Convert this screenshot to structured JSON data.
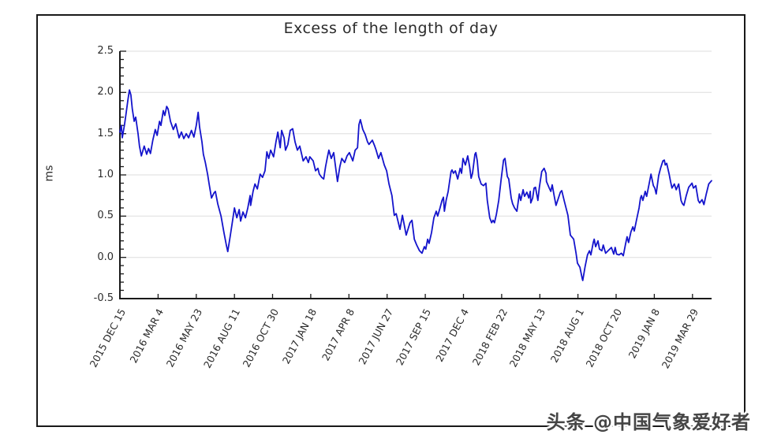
{
  "watermark": {
    "text": "头条 @中国气象爱好者",
    "color": "#454545"
  },
  "colors": {
    "line": "#1414cc",
    "grid": "#dedede",
    "axis": "#191919",
    "text": "#2b2b2b",
    "frame": "#191919",
    "background": "#ffffff"
  },
  "chart_data": {
    "type": "line",
    "title": "Excess of the length of day",
    "xlabel": "",
    "ylabel": "ms",
    "legend": "none",
    "grid": "horizontal major gridlines only",
    "ylim": [
      -0.5,
      2.5
    ],
    "y_ticks": [
      "-0.5",
      "0.0",
      "0.5",
      "1.0",
      "1.5",
      "2.0",
      "2.5"
    ],
    "y_tick_values": [
      -0.5,
      0.0,
      0.5,
      1.0,
      1.5,
      2.0,
      2.5
    ],
    "y_minor_tick_step": 0.1,
    "x_unit": "days since first tick (2015 DEC 15), ticks every 80 days",
    "xlim": [
      0,
      1240
    ],
    "x_ticks": [
      {
        "day": 0,
        "label": "2015 DEC 15"
      },
      {
        "day": 80,
        "label": "2016 MAR 4"
      },
      {
        "day": 160,
        "label": "2016 MAY 23"
      },
      {
        "day": 240,
        "label": "2016 AUG 11"
      },
      {
        "day": 320,
        "label": "2016 OCT 30"
      },
      {
        "day": 400,
        "label": "2017 JAN 18"
      },
      {
        "day": 480,
        "label": "2017 APR 8"
      },
      {
        "day": 560,
        "label": "2017 JUN 27"
      },
      {
        "day": 640,
        "label": "2017 SEP 15"
      },
      {
        "day": 720,
        "label": "2017 DEC 4"
      },
      {
        "day": 800,
        "label": "2018 FEB 22"
      },
      {
        "day": 880,
        "label": "2018 MAY 13"
      },
      {
        "day": 960,
        "label": "2018 AUG 1"
      },
      {
        "day": 1040,
        "label": "2018 OCT 20"
      },
      {
        "day": 1120,
        "label": "2019 JAN 8"
      },
      {
        "day": 1200,
        "label": "2019 MAR 29"
      }
    ],
    "series": [
      {
        "name": "excess of length of day (ms)",
        "color": "#1414cc",
        "points": [
          [
            0,
            1.52
          ],
          [
            3,
            1.6
          ],
          [
            5,
            1.45
          ],
          [
            10,
            1.62
          ],
          [
            13,
            1.75
          ],
          [
            17,
            1.92
          ],
          [
            20,
            2.03
          ],
          [
            23,
            1.97
          ],
          [
            26,
            1.8
          ],
          [
            30,
            1.65
          ],
          [
            33,
            1.7
          ],
          [
            38,
            1.5
          ],
          [
            41,
            1.35
          ],
          [
            45,
            1.23
          ],
          [
            51,
            1.35
          ],
          [
            56,
            1.25
          ],
          [
            60,
            1.32
          ],
          [
            64,
            1.26
          ],
          [
            69,
            1.42
          ],
          [
            74,
            1.55
          ],
          [
            78,
            1.48
          ],
          [
            83,
            1.65
          ],
          [
            86,
            1.6
          ],
          [
            91,
            1.78
          ],
          [
            94,
            1.72
          ],
          [
            98,
            1.83
          ],
          [
            101,
            1.8
          ],
          [
            106,
            1.65
          ],
          [
            112,
            1.55
          ],
          [
            117,
            1.62
          ],
          [
            124,
            1.45
          ],
          [
            129,
            1.52
          ],
          [
            134,
            1.44
          ],
          [
            139,
            1.5
          ],
          [
            144,
            1.45
          ],
          [
            150,
            1.54
          ],
          [
            155,
            1.46
          ],
          [
            160,
            1.6
          ],
          [
            164,
            1.76
          ],
          [
            167,
            1.58
          ],
          [
            172,
            1.4
          ],
          [
            175,
            1.25
          ],
          [
            179,
            1.15
          ],
          [
            184,
            1.0
          ],
          [
            187,
            0.89
          ],
          [
            192,
            0.72
          ],
          [
            197,
            0.78
          ],
          [
            200,
            0.8
          ],
          [
            205,
            0.65
          ],
          [
            212,
            0.5
          ],
          [
            218,
            0.3
          ],
          [
            223,
            0.15
          ],
          [
            226,
            0.07
          ],
          [
            231,
            0.25
          ],
          [
            235,
            0.4
          ],
          [
            240,
            0.6
          ],
          [
            245,
            0.48
          ],
          [
            250,
            0.58
          ],
          [
            253,
            0.44
          ],
          [
            258,
            0.55
          ],
          [
            263,
            0.48
          ],
          [
            268,
            0.6
          ],
          [
            273,
            0.75
          ],
          [
            274,
            0.63
          ],
          [
            279,
            0.8
          ],
          [
            283,
            0.89
          ],
          [
            288,
            0.83
          ],
          [
            294,
            1.01
          ],
          [
            299,
            0.97
          ],
          [
            304,
            1.05
          ],
          [
            308,
            1.28
          ],
          [
            312,
            1.2
          ],
          [
            316,
            1.3
          ],
          [
            322,
            1.22
          ],
          [
            327,
            1.4
          ],
          [
            331,
            1.52
          ],
          [
            336,
            1.33
          ],
          [
            339,
            1.54
          ],
          [
            344,
            1.45
          ],
          [
            347,
            1.3
          ],
          [
            352,
            1.37
          ],
          [
            357,
            1.54
          ],
          [
            362,
            1.56
          ],
          [
            367,
            1.4
          ],
          [
            372,
            1.3
          ],
          [
            377,
            1.35
          ],
          [
            384,
            1.17
          ],
          [
            390,
            1.22
          ],
          [
            395,
            1.15
          ],
          [
            398,
            1.22
          ],
          [
            405,
            1.17
          ],
          [
            410,
            1.05
          ],
          [
            415,
            1.08
          ],
          [
            418,
            1.01
          ],
          [
            423,
            0.97
          ],
          [
            427,
            0.95
          ],
          [
            431,
            1.1
          ],
          [
            435,
            1.22
          ],
          [
            438,
            1.3
          ],
          [
            443,
            1.2
          ],
          [
            448,
            1.27
          ],
          [
            453,
            1.05
          ],
          [
            456,
            0.92
          ],
          [
            461,
            1.1
          ],
          [
            465,
            1.2
          ],
          [
            471,
            1.15
          ],
          [
            476,
            1.23
          ],
          [
            481,
            1.27
          ],
          [
            488,
            1.17
          ],
          [
            493,
            1.3
          ],
          [
            498,
            1.33
          ],
          [
            501,
            1.61
          ],
          [
            504,
            1.67
          ],
          [
            509,
            1.55
          ],
          [
            514,
            1.49
          ],
          [
            519,
            1.4
          ],
          [
            522,
            1.37
          ],
          [
            529,
            1.42
          ],
          [
            534,
            1.35
          ],
          [
            537,
            1.3
          ],
          [
            542,
            1.2
          ],
          [
            547,
            1.27
          ],
          [
            554,
            1.12
          ],
          [
            559,
            1.05
          ],
          [
            564,
            0.89
          ],
          [
            570,
            0.75
          ],
          [
            575,
            0.51
          ],
          [
            579,
            0.53
          ],
          [
            587,
            0.34
          ],
          [
            592,
            0.51
          ],
          [
            600,
            0.27
          ],
          [
            608,
            0.42
          ],
          [
            612,
            0.45
          ],
          [
            617,
            0.22
          ],
          [
            622,
            0.15
          ],
          [
            628,
            0.08
          ],
          [
            633,
            0.05
          ],
          [
            638,
            0.13
          ],
          [
            641,
            0.1
          ],
          [
            645,
            0.22
          ],
          [
            648,
            0.17
          ],
          [
            653,
            0.3
          ],
          [
            658,
            0.48
          ],
          [
            663,
            0.56
          ],
          [
            666,
            0.5
          ],
          [
            671,
            0.6
          ],
          [
            675,
            0.69
          ],
          [
            678,
            0.73
          ],
          [
            680,
            0.56
          ],
          [
            684,
            0.7
          ],
          [
            688,
            0.8
          ],
          [
            691,
            0.92
          ],
          [
            694,
            1.04
          ],
          [
            696,
            1.06
          ],
          [
            699,
            1.02
          ],
          [
            703,
            1.05
          ],
          [
            708,
            0.95
          ],
          [
            713,
            1.08
          ],
          [
            716,
            1.02
          ],
          [
            719,
            1.2
          ],
          [
            724,
            1.12
          ],
          [
            729,
            1.23
          ],
          [
            733,
            1.1
          ],
          [
            736,
            0.96
          ],
          [
            739,
            1.02
          ],
          [
            744,
            1.25
          ],
          [
            746,
            1.27
          ],
          [
            749,
            1.17
          ],
          [
            752,
            0.98
          ],
          [
            757,
            0.89
          ],
          [
            762,
            0.87
          ],
          [
            767,
            0.9
          ],
          [
            770,
            0.69
          ],
          [
            775,
            0.48
          ],
          [
            779,
            0.42
          ],
          [
            782,
            0.45
          ],
          [
            785,
            0.42
          ],
          [
            789,
            0.52
          ],
          [
            794,
            0.69
          ],
          [
            799,
            0.95
          ],
          [
            804,
            1.18
          ],
          [
            807,
            1.2
          ],
          [
            812,
            0.98
          ],
          [
            815,
            0.95
          ],
          [
            820,
            0.72
          ],
          [
            823,
            0.65
          ],
          [
            827,
            0.6
          ],
          [
            832,
            0.56
          ],
          [
            837,
            0.77
          ],
          [
            840,
            0.69
          ],
          [
            845,
            0.82
          ],
          [
            848,
            0.74
          ],
          [
            853,
            0.79
          ],
          [
            857,
            0.72
          ],
          [
            860,
            0.8
          ],
          [
            861,
            0.66
          ],
          [
            865,
            0.72
          ],
          [
            868,
            0.84
          ],
          [
            871,
            0.85
          ],
          [
            876,
            0.69
          ],
          [
            879,
            0.85
          ],
          [
            884,
            1.04
          ],
          [
            889,
            1.08
          ],
          [
            893,
            1.02
          ],
          [
            894,
            0.92
          ],
          [
            899,
            0.85
          ],
          [
            903,
            0.8
          ],
          [
            906,
            0.88
          ],
          [
            910,
            0.75
          ],
          [
            914,
            0.63
          ],
          [
            923,
            0.79
          ],
          [
            926,
            0.81
          ],
          [
            931,
            0.69
          ],
          [
            939,
            0.51
          ],
          [
            944,
            0.27
          ],
          [
            951,
            0.22
          ],
          [
            956,
            0.05
          ],
          [
            959,
            -0.07
          ],
          [
            964,
            -0.12
          ],
          [
            969,
            -0.26
          ],
          [
            970,
            -0.28
          ],
          [
            975,
            -0.11
          ],
          [
            980,
            0.03
          ],
          [
            984,
            0.08
          ],
          [
            987,
            0.03
          ],
          [
            992,
            0.18
          ],
          [
            994,
            0.22
          ],
          [
            997,
            0.13
          ],
          [
            1002,
            0.2
          ],
          [
            1005,
            0.1
          ],
          [
            1010,
            0.08
          ],
          [
            1013,
            0.15
          ],
          [
            1018,
            0.05
          ],
          [
            1023,
            0.08
          ],
          [
            1030,
            0.12
          ],
          [
            1035,
            0.04
          ],
          [
            1038,
            0.12
          ],
          [
            1041,
            0.04
          ],
          [
            1046,
            0.03
          ],
          [
            1051,
            0.05
          ],
          [
            1055,
            0.02
          ],
          [
            1060,
            0.17
          ],
          [
            1063,
            0.25
          ],
          [
            1066,
            0.18
          ],
          [
            1071,
            0.31
          ],
          [
            1075,
            0.37
          ],
          [
            1078,
            0.32
          ],
          [
            1083,
            0.46
          ],
          [
            1088,
            0.6
          ],
          [
            1091,
            0.72
          ],
          [
            1093,
            0.75
          ],
          [
            1096,
            0.69
          ],
          [
            1101,
            0.8
          ],
          [
            1104,
            0.74
          ],
          [
            1109,
            0.89
          ],
          [
            1113,
            1.01
          ],
          [
            1118,
            0.87
          ],
          [
            1121,
            0.84
          ],
          [
            1124,
            0.77
          ],
          [
            1129,
            0.99
          ],
          [
            1133,
            1.08
          ],
          [
            1138,
            1.17
          ],
          [
            1141,
            1.18
          ],
          [
            1143,
            1.12
          ],
          [
            1146,
            1.14
          ],
          [
            1151,
            1.01
          ],
          [
            1154,
            0.92
          ],
          [
            1157,
            0.84
          ],
          [
            1162,
            0.89
          ],
          [
            1166,
            0.82
          ],
          [
            1171,
            0.89
          ],
          [
            1176,
            0.69
          ],
          [
            1179,
            0.65
          ],
          [
            1182,
            0.63
          ],
          [
            1187,
            0.75
          ],
          [
            1192,
            0.85
          ],
          [
            1199,
            0.9
          ],
          [
            1202,
            0.84
          ],
          [
            1207,
            0.87
          ],
          [
            1212,
            0.69
          ],
          [
            1215,
            0.66
          ],
          [
            1220,
            0.7
          ],
          [
            1224,
            0.64
          ],
          [
            1229,
            0.77
          ],
          [
            1234,
            0.89
          ],
          [
            1240,
            0.93
          ]
        ]
      }
    ]
  }
}
